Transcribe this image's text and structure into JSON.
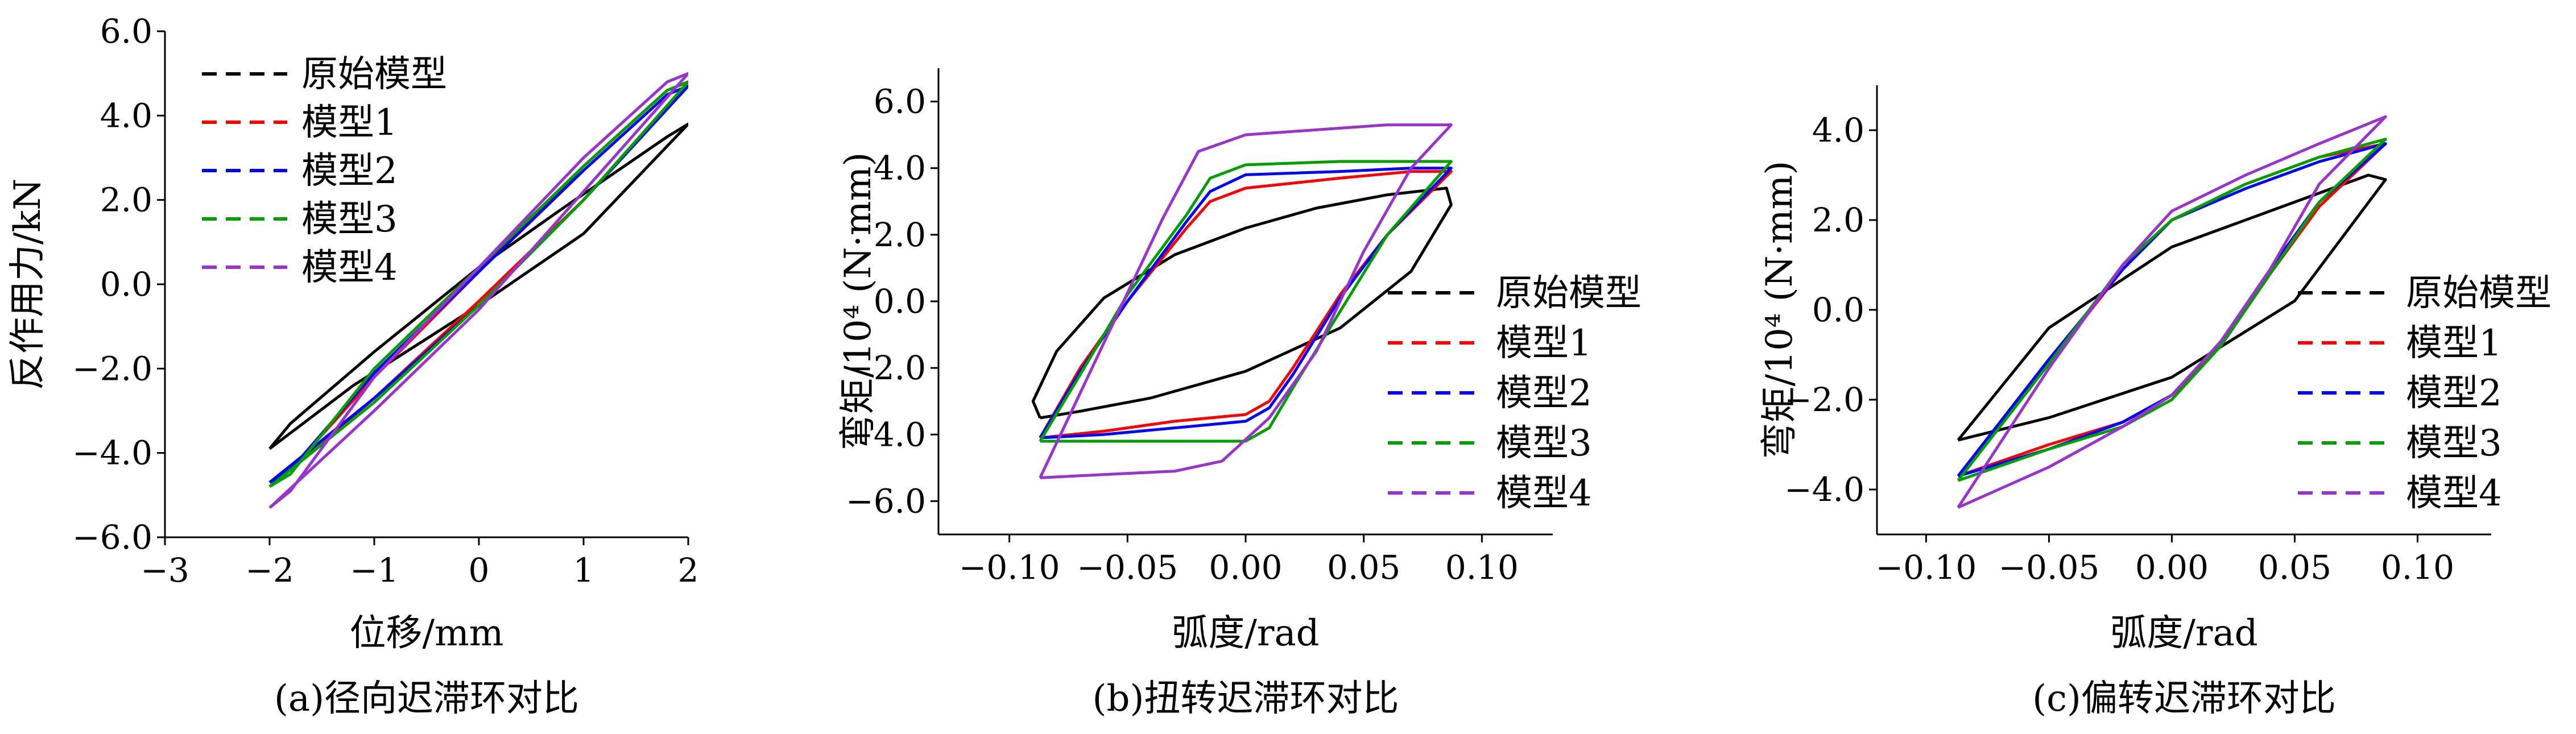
{
  "chart_data": [
    {
      "type": "line",
      "caption": "(a)径向迟滞环对比",
      "xlabel": "位移/mm",
      "ylabel": "反作用力/kN",
      "xlim": [
        -3,
        2
      ],
      "ylim": [
        -6,
        6
      ],
      "xticks": [
        "−3",
        "−2",
        "−1",
        "0",
        "1",
        "2"
      ],
      "yticks": [
        "−6.0",
        "−4.0",
        "−2.0",
        "0.0",
        "2.0",
        "4.0",
        "6.0"
      ],
      "legend_position": "top-left",
      "series": [
        {
          "name": "原始模型",
          "color": "#000000",
          "points": [
            [
              -2,
              -3.9
            ],
            [
              -1.2,
              -2.4
            ],
            [
              0,
              -0.5
            ],
            [
              1,
              1.2
            ],
            [
              2,
              3.8
            ],
            [
              1.8,
              3.5
            ],
            [
              0.8,
              1.8
            ],
            [
              0,
              0.4
            ],
            [
              -1,
              -1.6
            ],
            [
              -1.8,
              -3.3
            ],
            [
              -2,
              -3.9
            ]
          ]
        },
        {
          "name": "模型1",
          "color": "#ff0000",
          "points": [
            [
              -2,
              -4.8
            ],
            [
              -1,
              -2.7
            ],
            [
              0,
              -0.4
            ],
            [
              1,
              2.0
            ],
            [
              2,
              4.8
            ],
            [
              1.8,
              4.6
            ],
            [
              1,
              2.8
            ],
            [
              0,
              0.3
            ],
            [
              -1,
              -2.2
            ],
            [
              -1.8,
              -4.4
            ],
            [
              -2,
              -4.8
            ]
          ]
        },
        {
          "name": "模型2",
          "color": "#0000ff",
          "points": [
            [
              -2,
              -4.7
            ],
            [
              -1,
              -2.7
            ],
            [
              0,
              -0.5
            ],
            [
              1,
              2.0
            ],
            [
              2,
              4.7
            ],
            [
              1.8,
              4.5
            ],
            [
              1,
              2.7
            ],
            [
              0,
              0.3
            ],
            [
              -1,
              -2.1
            ],
            [
              -1.8,
              -4.4
            ],
            [
              -2,
              -4.7
            ]
          ]
        },
        {
          "name": "模型3",
          "color": "#00a000",
          "points": [
            [
              -2,
              -4.8
            ],
            [
              -1,
              -2.8
            ],
            [
              0,
              -0.5
            ],
            [
              1,
              2.0
            ],
            [
              2,
              4.8
            ],
            [
              1.8,
              4.6
            ],
            [
              1,
              2.8
            ],
            [
              0,
              0.4
            ],
            [
              -1,
              -2.0
            ],
            [
              -1.8,
              -4.5
            ],
            [
              -2,
              -4.8
            ]
          ]
        },
        {
          "name": "模型4",
          "color": "#9a32cd",
          "points": [
            [
              -2,
              -5.3
            ],
            [
              -1,
              -3.0
            ],
            [
              0,
              -0.6
            ],
            [
              1,
              2.2
            ],
            [
              2,
              5.0
            ],
            [
              1.8,
              4.8
            ],
            [
              1,
              3.0
            ],
            [
              0,
              0.4
            ],
            [
              -1,
              -2.2
            ],
            [
              -1.8,
              -4.9
            ],
            [
              -2,
              -5.3
            ]
          ]
        }
      ]
    },
    {
      "type": "line",
      "caption": "(b)扭转迟滞环对比",
      "xlabel": "弧度/rad",
      "ylabel": "弯矩/10⁴ (N·mm)",
      "xlim": [
        -0.13,
        0.13
      ],
      "ylim": [
        -7,
        7
      ],
      "xticks": [
        "−0.10",
        "−0.05",
        "0.00",
        "0.05",
        "0.10"
      ],
      "yticks": [
        "−6.0",
        "−4.0",
        "−2.0",
        "0.0",
        "2.0",
        "4.0",
        "6.0"
      ],
      "legend_position": "center-right",
      "series": [
        {
          "name": "原始模型",
          "color": "#000000",
          "points": [
            [
              -0.087,
              -3.5
            ],
            [
              -0.07,
              -3.3
            ],
            [
              -0.04,
              -2.9
            ],
            [
              0,
              -2.1
            ],
            [
              0.04,
              -0.8
            ],
            [
              0.07,
              0.9
            ],
            [
              0.087,
              2.9
            ],
            [
              0.085,
              3.4
            ],
            [
              0.06,
              3.2
            ],
            [
              0.03,
              2.8
            ],
            [
              0,
              2.2
            ],
            [
              -0.03,
              1.4
            ],
            [
              -0.06,
              0.1
            ],
            [
              -0.08,
              -1.5
            ],
            [
              -0.09,
              -3.0
            ],
            [
              -0.087,
              -3.5
            ]
          ]
        },
        {
          "name": "模型1",
          "color": "#ff0000",
          "points": [
            [
              -0.087,
              -4.1
            ],
            [
              -0.06,
              -3.9
            ],
            [
              -0.03,
              -3.6
            ],
            [
              0,
              -3.4
            ],
            [
              0.01,
              -3.0
            ],
            [
              0.02,
              -2.0
            ],
            [
              0.04,
              0.2
            ],
            [
              0.06,
              2.0
            ],
            [
              0.087,
              3.9
            ],
            [
              0.07,
              3.9
            ],
            [
              0.04,
              3.7
            ],
            [
              0,
              3.4
            ],
            [
              -0.015,
              3.0
            ],
            [
              -0.025,
              2.2
            ],
            [
              -0.05,
              0
            ],
            [
              -0.07,
              -2.0
            ],
            [
              -0.087,
              -4.1
            ]
          ]
        },
        {
          "name": "模型2",
          "color": "#0000ff",
          "points": [
            [
              -0.087,
              -4.1
            ],
            [
              -0.06,
              -4.0
            ],
            [
              -0.03,
              -3.8
            ],
            [
              0,
              -3.6
            ],
            [
              0.01,
              -3.2
            ],
            [
              0.02,
              -2.2
            ],
            [
              0.04,
              0.1
            ],
            [
              0.06,
              2.0
            ],
            [
              0.087,
              4.0
            ],
            [
              0.07,
              4.0
            ],
            [
              0.04,
              3.9
            ],
            [
              0,
              3.8
            ],
            [
              -0.015,
              3.3
            ],
            [
              -0.025,
              2.4
            ],
            [
              -0.05,
              0
            ],
            [
              -0.07,
              -2.1
            ],
            [
              -0.087,
              -4.1
            ]
          ]
        },
        {
          "name": "模型3",
          "color": "#00a000",
          "points": [
            [
              -0.087,
              -4.2
            ],
            [
              -0.06,
              -4.2
            ],
            [
              -0.03,
              -4.2
            ],
            [
              0,
              -4.2
            ],
            [
              0.01,
              -3.8
            ],
            [
              0.02,
              -2.6
            ],
            [
              0.04,
              -0.3
            ],
            [
              0.06,
              2.0
            ],
            [
              0.087,
              4.2
            ],
            [
              0.07,
              4.2
            ],
            [
              0.04,
              4.2
            ],
            [
              0,
              4.1
            ],
            [
              -0.015,
              3.7
            ],
            [
              -0.025,
              2.6
            ],
            [
              -0.05,
              0.2
            ],
            [
              -0.07,
              -2.2
            ],
            [
              -0.087,
              -4.2
            ]
          ]
        },
        {
          "name": "模型4",
          "color": "#9a32cd",
          "points": [
            [
              -0.087,
              -5.3
            ],
            [
              -0.06,
              -5.2
            ],
            [
              -0.03,
              -5.1
            ],
            [
              -0.01,
              -4.8
            ],
            [
              0.01,
              -3.5
            ],
            [
              0.03,
              -1.5
            ],
            [
              0.05,
              1.5
            ],
            [
              0.07,
              4.0
            ],
            [
              0.087,
              5.3
            ],
            [
              0.06,
              5.3
            ],
            [
              0.04,
              5.2
            ],
            [
              0,
              5.0
            ],
            [
              -0.02,
              4.5
            ],
            [
              -0.035,
              2.5
            ],
            [
              -0.055,
              -0.5
            ],
            [
              -0.075,
              -3.5
            ],
            [
              -0.087,
              -5.3
            ]
          ]
        }
      ]
    },
    {
      "type": "line",
      "caption": "(c)偏转迟滞环对比",
      "xlabel": "弧度/rad",
      "ylabel": "弯矩/10⁴ (N·mm)",
      "xlim": [
        -0.12,
        0.13
      ],
      "ylim": [
        -5,
        5
      ],
      "xticks": [
        "−0.10",
        "−0.05",
        "0.00",
        "0.05",
        "0.10"
      ],
      "yticks": [
        "−4.0",
        "−2.0",
        "0.0",
        "2.0",
        "4.0"
      ],
      "legend_position": "bottom-right",
      "series": [
        {
          "name": "原始模型",
          "color": "#000000",
          "points": [
            [
              -0.087,
              -2.9
            ],
            [
              -0.05,
              -2.4
            ],
            [
              0,
              -1.5
            ],
            [
              0.05,
              0.2
            ],
            [
              0.087,
              2.9
            ],
            [
              0.08,
              3.0
            ],
            [
              0.05,
              2.4
            ],
            [
              0,
              1.4
            ],
            [
              -0.05,
              -0.4
            ],
            [
              -0.087,
              -2.9
            ]
          ]
        },
        {
          "name": "模型1",
          "color": "#ff0000",
          "points": [
            [
              -0.087,
              -3.7
            ],
            [
              -0.05,
              -3.0
            ],
            [
              -0.02,
              -2.5
            ],
            [
              0,
              -1.9
            ],
            [
              0.02,
              -0.8
            ],
            [
              0.04,
              0.8
            ],
            [
              0.06,
              2.3
            ],
            [
              0.087,
              3.7
            ],
            [
              0.06,
              3.4
            ],
            [
              0.03,
              2.8
            ],
            [
              0,
              2.0
            ],
            [
              -0.02,
              0.9
            ],
            [
              -0.05,
              -1.2
            ],
            [
              -0.087,
              -3.7
            ]
          ]
        },
        {
          "name": "模型2",
          "color": "#0000ff",
          "points": [
            [
              -0.087,
              -3.7
            ],
            [
              -0.05,
              -3.1
            ],
            [
              -0.02,
              -2.5
            ],
            [
              0,
              -1.9
            ],
            [
              0.02,
              -0.7
            ],
            [
              0.04,
              0.9
            ],
            [
              0.06,
              2.4
            ],
            [
              0.087,
              3.7
            ],
            [
              0.06,
              3.3
            ],
            [
              0.03,
              2.7
            ],
            [
              0,
              2.0
            ],
            [
              -0.02,
              0.9
            ],
            [
              -0.05,
              -1.1
            ],
            [
              -0.087,
              -3.7
            ]
          ]
        },
        {
          "name": "模型3",
          "color": "#00a000",
          "points": [
            [
              -0.087,
              -3.8
            ],
            [
              -0.05,
              -3.1
            ],
            [
              -0.02,
              -2.6
            ],
            [
              0,
              -2.0
            ],
            [
              0.02,
              -0.8
            ],
            [
              0.04,
              0.8
            ],
            [
              0.06,
              2.4
            ],
            [
              0.087,
              3.8
            ],
            [
              0.06,
              3.4
            ],
            [
              0.03,
              2.8
            ],
            [
              0,
              2.0
            ],
            [
              -0.02,
              1.0
            ],
            [
              -0.05,
              -1.2
            ],
            [
              -0.087,
              -3.8
            ]
          ]
        },
        {
          "name": "模型4",
          "color": "#9a32cd",
          "points": [
            [
              -0.087,
              -4.4
            ],
            [
              -0.05,
              -3.5
            ],
            [
              -0.02,
              -2.6
            ],
            [
              0,
              -1.9
            ],
            [
              0.02,
              -0.7
            ],
            [
              0.04,
              0.9
            ],
            [
              0.06,
              2.8
            ],
            [
              0.087,
              4.3
            ],
            [
              0.06,
              3.7
            ],
            [
              0.03,
              3.0
            ],
            [
              0,
              2.2
            ],
            [
              -0.02,
              1.0
            ],
            [
              -0.05,
              -1.3
            ],
            [
              -0.087,
              -4.4
            ]
          ]
        }
      ]
    }
  ]
}
